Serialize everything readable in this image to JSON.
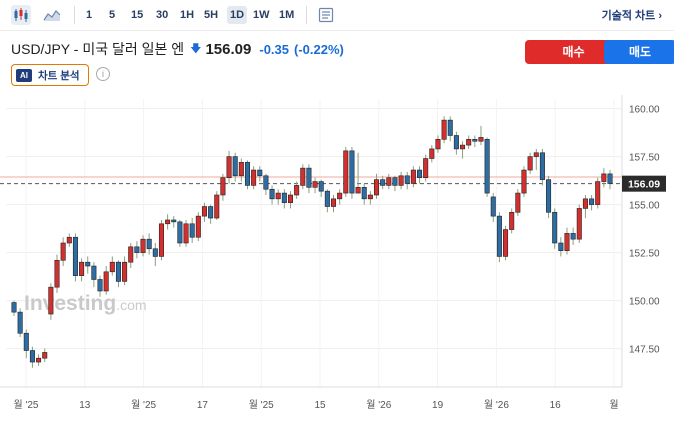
{
  "toolbar": {
    "icons": [
      "candlestick-icon",
      "area-chart-icon",
      "indicator-icon"
    ],
    "timeframes": [
      "1",
      "5",
      "15",
      "30",
      "1H",
      "5H",
      "1D",
      "1W",
      "1M"
    ],
    "active_timeframe": "1D",
    "chart_label": "기술적 차트 ›"
  },
  "header": {
    "title": "USD/JPY - 미국 달러 일본 엔",
    "direction_icon": "down-arrow-icon",
    "price": "156.09",
    "change": "-0.35",
    "change_pct": "(-0.22%)",
    "change_color": "#1a6bd8"
  },
  "actions": {
    "buy_label": "매수",
    "sell_label": "매도",
    "buy_color": "#e02b2b",
    "sell_color": "#1a73e8"
  },
  "ai": {
    "badge": "AI",
    "label": "차트 분석",
    "info_icon": "info-icon"
  },
  "watermark": {
    "brand": "Investing",
    "suffix": ".com"
  },
  "chart_data": {
    "type": "candlestick",
    "title": "",
    "xlabel": "",
    "ylabel": "",
    "ylim": [
      145.5,
      160.5
    ],
    "y_ticks": [
      "147.50",
      "150.00",
      "152.50",
      "155.00",
      "157.50",
      "160.00"
    ],
    "x_ticks": [
      "월 '25",
      "13",
      "월 '25",
      "17",
      "월 '25",
      "15",
      "월 '26",
      "19",
      "월 '26",
      "16",
      "월"
    ],
    "current_price": 156.09,
    "current_label": "156.09",
    "reference_line": 156.44,
    "up_color": "#d32f2f",
    "down_color": "#2e6da4",
    "grid": true,
    "candles": [
      [
        149.9,
        149.4,
        150.0,
        149.2
      ],
      [
        149.4,
        148.3,
        149.6,
        148.1
      ],
      [
        148.3,
        147.4,
        148.5,
        147.0
      ],
      [
        147.4,
        146.8,
        147.6,
        146.5
      ],
      [
        146.8,
        147.0,
        147.2,
        146.6
      ],
      [
        147.0,
        147.3,
        147.5,
        146.8
      ],
      [
        149.3,
        150.7,
        150.9,
        149.0
      ],
      [
        150.7,
        152.1,
        152.4,
        150.4
      ],
      [
        152.1,
        153.0,
        153.3,
        151.8
      ],
      [
        153.0,
        153.3,
        153.5,
        152.8
      ],
      [
        153.3,
        151.3,
        153.5,
        151.0
      ],
      [
        151.3,
        152.0,
        152.2,
        151.0
      ],
      [
        152.0,
        151.8,
        152.3,
        151.4
      ],
      [
        151.8,
        151.1,
        152.0,
        150.7
      ],
      [
        151.1,
        150.5,
        151.3,
        150.2
      ],
      [
        150.5,
        151.5,
        151.8,
        150.3
      ],
      [
        151.5,
        152.0,
        152.3,
        151.3
      ],
      [
        152.0,
        151.0,
        152.1,
        150.7
      ],
      [
        151.0,
        152.0,
        152.3,
        150.8
      ],
      [
        152.0,
        152.8,
        153.0,
        151.7
      ],
      [
        152.8,
        152.5,
        153.1,
        152.2
      ],
      [
        152.5,
        153.2,
        153.4,
        152.3
      ],
      [
        153.2,
        152.7,
        153.5,
        152.4
      ],
      [
        152.7,
        152.3,
        153.0,
        151.8
      ],
      [
        152.3,
        154.0,
        154.2,
        152.1
      ],
      [
        154.0,
        154.2,
        154.5,
        153.7
      ],
      [
        154.2,
        154.1,
        154.4,
        153.8
      ],
      [
        154.1,
        153.0,
        154.2,
        152.8
      ],
      [
        153.0,
        154.0,
        154.2,
        152.8
      ],
      [
        154.0,
        153.3,
        154.3,
        153.0
      ],
      [
        153.3,
        154.4,
        154.6,
        153.1
      ],
      [
        154.4,
        154.9,
        155.1,
        154.1
      ],
      [
        154.9,
        154.3,
        155.0,
        154.0
      ],
      [
        154.3,
        155.5,
        155.7,
        154.2
      ],
      [
        155.5,
        156.4,
        156.6,
        155.2
      ],
      [
        156.4,
        157.5,
        157.8,
        156.1
      ],
      [
        157.5,
        156.5,
        157.7,
        156.2
      ],
      [
        156.5,
        157.2,
        157.4,
        156.2
      ],
      [
        157.2,
        156.0,
        157.3,
        155.8
      ],
      [
        156.0,
        156.8,
        157.0,
        155.8
      ],
      [
        156.8,
        156.5,
        157.0,
        156.2
      ],
      [
        156.5,
        155.8,
        156.6,
        155.5
      ],
      [
        155.8,
        155.3,
        156.0,
        155.0
      ],
      [
        155.3,
        155.6,
        155.8,
        155.0
      ],
      [
        155.6,
        155.1,
        155.8,
        154.8
      ],
      [
        155.1,
        155.5,
        155.7,
        154.8
      ],
      [
        155.5,
        156.0,
        156.2,
        155.3
      ],
      [
        156.0,
        156.9,
        157.1,
        155.8
      ],
      [
        156.9,
        155.9,
        157.1,
        155.6
      ],
      [
        155.9,
        156.2,
        156.4,
        155.6
      ],
      [
        156.2,
        155.7,
        156.3,
        155.4
      ],
      [
        155.7,
        154.9,
        155.8,
        154.6
      ],
      [
        154.9,
        155.3,
        155.5,
        154.6
      ],
      [
        155.3,
        155.6,
        155.8,
        155.0
      ],
      [
        155.6,
        157.8,
        158.0,
        155.4
      ],
      [
        157.8,
        155.6,
        158.0,
        155.3
      ],
      [
        155.6,
        155.9,
        157.7,
        155.6
      ],
      [
        155.9,
        155.3,
        156.1,
        155.0
      ],
      [
        155.3,
        155.5,
        155.7,
        155.0
      ],
      [
        155.5,
        156.3,
        156.6,
        155.3
      ],
      [
        156.3,
        156.0,
        156.5,
        155.8
      ],
      [
        156.0,
        156.4,
        156.6,
        155.8
      ],
      [
        156.4,
        156.0,
        156.5,
        155.7
      ],
      [
        156.0,
        156.5,
        156.7,
        155.8
      ],
      [
        156.5,
        156.1,
        156.7,
        155.8
      ],
      [
        156.1,
        156.8,
        157.0,
        155.9
      ],
      [
        156.8,
        156.4,
        157.0,
        156.1
      ],
      [
        156.4,
        157.4,
        157.6,
        156.2
      ],
      [
        157.4,
        157.9,
        158.1,
        157.2
      ],
      [
        157.9,
        158.4,
        158.6,
        157.7
      ],
      [
        158.4,
        159.4,
        159.6,
        158.2
      ],
      [
        159.4,
        158.6,
        159.6,
        158.3
      ],
      [
        158.6,
        157.9,
        158.8,
        157.6
      ],
      [
        157.9,
        158.1,
        158.3,
        157.4
      ],
      [
        158.1,
        158.4,
        158.6,
        157.9
      ],
      [
        158.4,
        158.3,
        158.6,
        158.0
      ],
      [
        158.3,
        158.5,
        159.1,
        158.1
      ],
      [
        158.4,
        155.6,
        158.5,
        155.4
      ],
      [
        155.4,
        154.4,
        155.6,
        154.1
      ],
      [
        154.4,
        152.3,
        154.6,
        152.0
      ],
      [
        152.3,
        153.7,
        153.9,
        152.1
      ],
      [
        153.7,
        154.6,
        154.8,
        153.5
      ],
      [
        154.6,
        155.6,
        155.8,
        154.4
      ],
      [
        155.6,
        156.8,
        157.0,
        155.4
      ],
      [
        156.8,
        157.5,
        157.7,
        156.6
      ],
      [
        157.5,
        157.7,
        157.9,
        156.8
      ],
      [
        157.7,
        156.3,
        157.9,
        156.0
      ],
      [
        156.3,
        154.6,
        156.5,
        154.3
      ],
      [
        154.6,
        153.0,
        154.8,
        152.7
      ],
      [
        153.0,
        152.6,
        153.3,
        152.3
      ],
      [
        152.6,
        153.5,
        153.8,
        152.4
      ],
      [
        153.5,
        153.2,
        153.8,
        152.9
      ],
      [
        153.2,
        154.8,
        155.0,
        153.0
      ],
      [
        154.8,
        155.3,
        155.5,
        154.3
      ],
      [
        155.3,
        155.0,
        155.5,
        154.7
      ],
      [
        155.0,
        156.2,
        156.4,
        154.8
      ],
      [
        156.2,
        156.6,
        156.9,
        155.9
      ],
      [
        156.6,
        156.1,
        156.8,
        155.8
      ]
    ]
  }
}
